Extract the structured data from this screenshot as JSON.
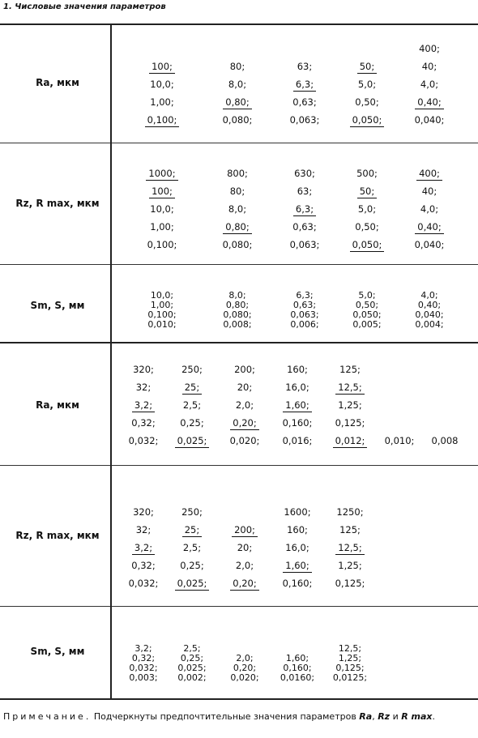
{
  "heading": "1. Числовые значения параметров",
  "tables": [
    {
      "label": "Ra, мкм",
      "cols": [
        [
          {
            "t": "100;",
            "u": true
          },
          {
            "t": "10,0;"
          },
          {
            "t": "1,00;"
          },
          {
            "t": "0,100;",
            "u": true
          }
        ],
        [
          {
            "t": "80;"
          },
          {
            "t": "8,0;"
          },
          {
            "t": "0,80;",
            "u": true
          },
          {
            "t": "0,080;"
          }
        ],
        [
          {
            "t": "63;"
          },
          {
            "t": "6,3;",
            "u": true
          },
          {
            "t": "0,63;"
          },
          {
            "t": "0,063;"
          }
        ],
        [
          {
            "t": "50;",
            "u": true
          },
          {
            "t": "5,0;"
          },
          {
            "t": "0,50;"
          },
          {
            "t": "0,050;",
            "u": true
          }
        ],
        [
          {
            "t": "400;"
          },
          {
            "t": "40;"
          },
          {
            "t": "4,0;"
          },
          {
            "t": "0,40;",
            "u": true
          },
          {
            "t": "0,040;"
          }
        ]
      ]
    },
    {
      "label": "Rz, R max, мкм",
      "cols": [
        [
          {
            "t": "1000;",
            "u": true
          },
          {
            "t": "100;",
            "u": true
          },
          {
            "t": "10,0;"
          },
          {
            "t": "1,00;"
          },
          {
            "t": "0,100;"
          }
        ],
        [
          {
            "t": "800;"
          },
          {
            "t": "80;"
          },
          {
            "t": "8,0;"
          },
          {
            "t": "0,80;",
            "u": true
          },
          {
            "t": "0,080;"
          }
        ],
        [
          {
            "t": "630;"
          },
          {
            "t": "63;"
          },
          {
            "t": "6,3;",
            "u": true
          },
          {
            "t": "0,63;"
          },
          {
            "t": "0,063;"
          }
        ],
        [
          {
            "t": "500;"
          },
          {
            "t": "50;",
            "u": true
          },
          {
            "t": "5,0;"
          },
          {
            "t": "0,50;"
          },
          {
            "t": "0,050;",
            "u": true
          }
        ],
        [
          {
            "t": "400;",
            "u": true
          },
          {
            "t": "40;"
          },
          {
            "t": "4,0;"
          },
          {
            "t": "0,40;",
            "u": true
          },
          {
            "t": "0,040;"
          }
        ]
      ]
    },
    {
      "label": "Sm, S, мм",
      "cols": [
        [
          {
            "t": "10,0;"
          },
          {
            "t": "1,00;"
          },
          {
            "t": "0,100;"
          },
          {
            "t": "0,010;"
          }
        ],
        [
          {
            "t": "8,0;"
          },
          {
            "t": "0,80;"
          },
          {
            "t": "0,080;"
          },
          {
            "t": "0,008;"
          }
        ],
        [
          {
            "t": "6,3;"
          },
          {
            "t": "0,63;"
          },
          {
            "t": "0,063;"
          },
          {
            "t": "0,006;"
          }
        ],
        [
          {
            "t": "5,0;"
          },
          {
            "t": "0,50;"
          },
          {
            "t": "0,050;"
          },
          {
            "t": "0,005;"
          }
        ],
        [
          {
            "t": "4,0;"
          },
          {
            "t": "0,40;"
          },
          {
            "t": "0,040;"
          },
          {
            "t": "0,004;"
          }
        ]
      ]
    },
    {
      "label": "Ra, мкм",
      "cols": [
        [
          {
            "t": "320;"
          },
          {
            "t": "32;"
          },
          {
            "t": "3,2;",
            "u": true
          },
          {
            "t": "0,32;"
          },
          {
            "t": "0,032;"
          }
        ],
        [
          {
            "t": "250;"
          },
          {
            "t": "25;",
            "u": true
          },
          {
            "t": "2,5;"
          },
          {
            "t": "0,25;"
          },
          {
            "t": "0,025;",
            "u": true
          }
        ],
        [
          {
            "t": "200;"
          },
          {
            "t": "20;"
          },
          {
            "t": "2,0;"
          },
          {
            "t": "0,20;",
            "u": true
          },
          {
            "t": "0,020;"
          }
        ],
        [
          {
            "t": "160;"
          },
          {
            "t": "16,0;"
          },
          {
            "t": "1,60;",
            "u": true
          },
          {
            "t": "0,160;"
          },
          {
            "t": "0,016;"
          }
        ],
        [
          {
            "t": "125;"
          },
          {
            "t": "12,5;",
            "u": true
          },
          {
            "t": "1,25;"
          },
          {
            "t": "0,125;"
          },
          {
            "t": "0,012;",
            "u": true
          }
        ],
        [
          {
            "t": "0,010;"
          }
        ],
        [
          {
            "t": "0,008"
          }
        ]
      ]
    },
    {
      "label": "Rz, R max, мкм",
      "cols": [
        [
          {
            "t": "320;"
          },
          {
            "t": "32;"
          },
          {
            "t": "3,2;",
            "u": true
          },
          {
            "t": "0,32;"
          },
          {
            "t": "0,032;"
          }
        ],
        [
          {
            "t": "250;"
          },
          {
            "t": "25;",
            "u": true
          },
          {
            "t": "2,5;"
          },
          {
            "t": "0,25;"
          },
          {
            "t": "0,025;",
            "u": true
          }
        ],
        [
          {
            "t": "200;",
            "u": true
          },
          {
            "t": "20;"
          },
          {
            "t": "2,0;"
          },
          {
            "t": "0,20;",
            "u": true
          }
        ],
        [
          {
            "t": "1600;"
          },
          {
            "t": "160;"
          },
          {
            "t": "16,0;"
          },
          {
            "t": "1,60;",
            "u": true
          },
          {
            "t": "0,160;"
          }
        ],
        [
          {
            "t": "1250;"
          },
          {
            "t": "125;"
          },
          {
            "t": "12,5;",
            "u": true
          },
          {
            "t": "1,25;"
          },
          {
            "t": "0,125;"
          }
        ]
      ]
    },
    {
      "label": "Sm, S, мм",
      "cols": [
        [
          {
            "t": "3,2;"
          },
          {
            "t": "0,32;"
          },
          {
            "t": "0,032;"
          },
          {
            "t": "0,003;"
          }
        ],
        [
          {
            "t": "2,5;"
          },
          {
            "t": "0,25;"
          },
          {
            "t": "0,025;"
          },
          {
            "t": "0,002;"
          }
        ],
        [
          {
            "t": "2,0;"
          },
          {
            "t": "0,20;"
          },
          {
            "t": "0,020;"
          }
        ],
        [
          {
            "t": "1,60;"
          },
          {
            "t": "0,160;"
          },
          {
            "t": "0,0160;"
          }
        ],
        [
          {
            "t": "12,5;"
          },
          {
            "t": "1,25;"
          },
          {
            "t": "0,125;"
          },
          {
            "t": "0,0125;"
          }
        ]
      ]
    }
  ],
  "note": {
    "lead": "Примечание.",
    "text_before": " Подчеркнуты предпочтительные значения параметров ",
    "param_ra": "Ra",
    "sep1": ", ",
    "param_rz": "Rz",
    "sep2": " и ",
    "param_rmax": "R max",
    "end": "."
  }
}
